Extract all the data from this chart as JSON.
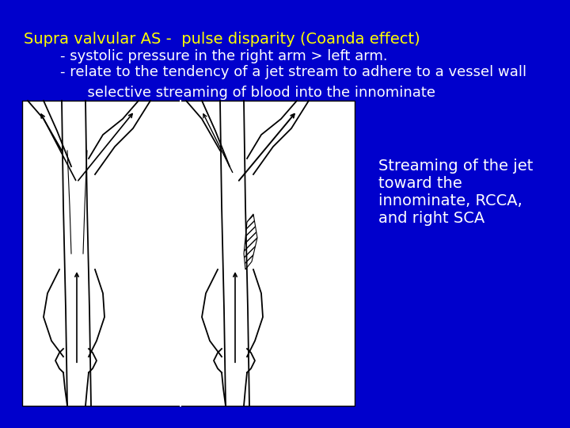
{
  "background_color": "#0000CC",
  "title_text": "Supra valvular AS -  pulse disparity (Coanda effect)",
  "title_color": "#FFFF00",
  "line1": "        - systolic pressure in the right arm > left arm.",
  "line2": "        - relate to the tendency of a jet stream to adhere to a vessel wall",
  "line3": "              selective streaming of blood into the innominate",
  "body_color": "#FFFFFF",
  "annotation_text": "Streaming of the jet\ntoward the\ninnominate, RCCA,\nand right SCA",
  "annotation_color": "#FFFFFF",
  "font_size_title": 14,
  "font_size_body": 13,
  "font_size_annotation": 14
}
